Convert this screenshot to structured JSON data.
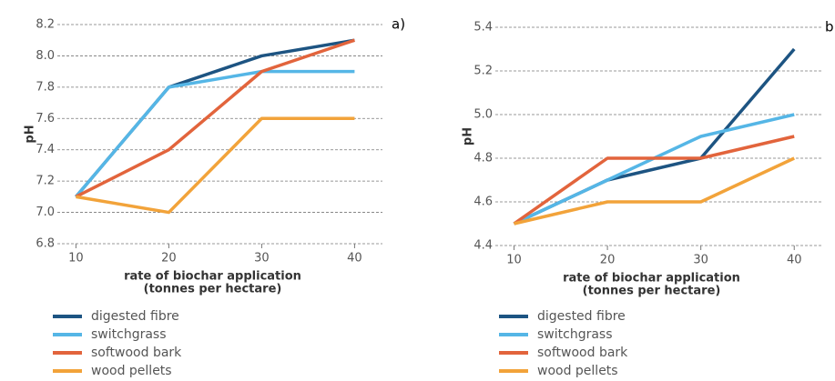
{
  "chart_data": [
    {
      "type": "line",
      "title": "a)",
      "ylabel": "pH",
      "xlabel": [
        "rate of biochar application",
        "(tonnes per hectare)"
      ],
      "x": [
        10,
        20,
        30,
        40
      ],
      "xlim": [
        8,
        43
      ],
      "xticks": [
        10,
        20,
        30,
        40
      ],
      "ylim": [
        6.8,
        8.2
      ],
      "yticks": [
        6.8,
        {
          "value": 7.0,
          "label": "7.0"
        },
        7.2,
        7.4,
        7.6,
        7.8,
        {
          "value": 8.0,
          "label": "8.0"
        },
        8.2
      ],
      "grid": true,
      "series": [
        {
          "name": "digested fibre",
          "color": "#1d5482",
          "values": [
            7.1,
            7.8,
            8.0,
            8.1
          ]
        },
        {
          "name": "switchgrass",
          "color": "#55b6e6",
          "values": [
            7.1,
            7.8,
            7.9,
            7.9
          ]
        },
        {
          "name": "softwood bark",
          "color": "#e2643c",
          "values": [
            7.1,
            7.4,
            7.9,
            8.1
          ]
        },
        {
          "name": "wood pellets",
          "color": "#f2a33a",
          "values": [
            7.1,
            7.0,
            7.6,
            7.6
          ]
        }
      ]
    },
    {
      "type": "line",
      "title": "b",
      "ylabel": "pH",
      "xlabel": [
        "rate of biochar application",
        "(tonnes per hectare)"
      ],
      "x": [
        10,
        20,
        30,
        40
      ],
      "xlim": [
        8,
        43
      ],
      "xticks": [
        10,
        20,
        30,
        40
      ],
      "ylim": [
        4.4,
        5.4
      ],
      "yticks": [
        4.4,
        4.6,
        4.8,
        {
          "value": 5.0,
          "label": "5.0"
        },
        5.2,
        5.4
      ],
      "grid": true,
      "series": [
        {
          "name": "digested fibre",
          "color": "#1d5482",
          "values": [
            4.5,
            4.7,
            4.8,
            5.3
          ]
        },
        {
          "name": "switchgrass",
          "color": "#55b6e6",
          "values": [
            4.5,
            4.7,
            4.9,
            5.0
          ]
        },
        {
          "name": "softwood bark",
          "color": "#e2643c",
          "values": [
            4.5,
            4.8,
            4.8,
            4.9
          ]
        },
        {
          "name": "wood pellets",
          "color": "#f2a33a",
          "values": [
            4.5,
            4.6,
            4.6,
            4.8
          ]
        }
      ]
    }
  ]
}
